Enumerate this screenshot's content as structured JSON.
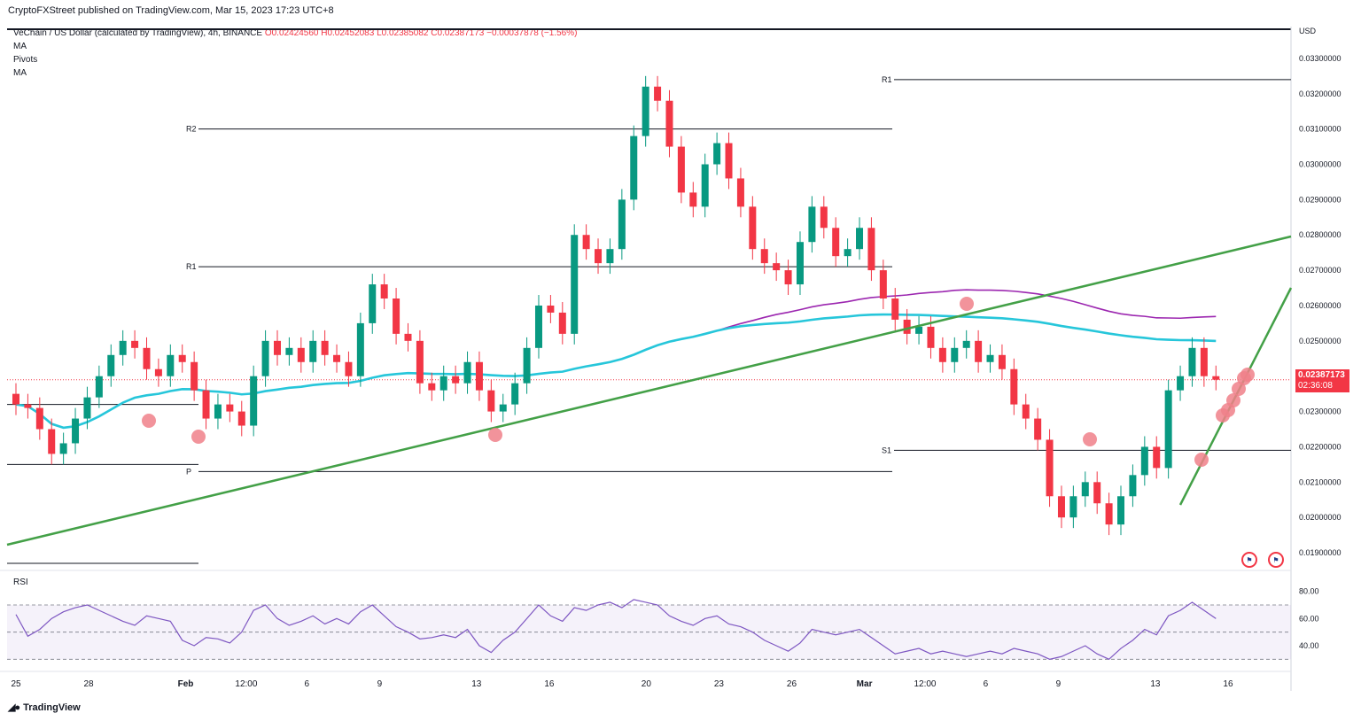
{
  "header": {
    "publisher": "CryptoFXStreet published on TradingView.com, Mar 15, 2023 17:23 UTC+8",
    "symbol": "VeChain / US Dollar (calculated by TradingView), 4h, BINANCE",
    "open": "O0.02424560",
    "high": "H0.02452083",
    "low": "L0.02385082",
    "close": "C0.02387173",
    "change": "−0.00037878 (−1.56%)",
    "indicators": [
      "MA",
      "Pivots",
      "MA"
    ]
  },
  "price_tag": {
    "price": "0.02387173",
    "countdown": "02:36:08"
  },
  "footer": {
    "brand": "TradingView",
    "logo": "tradingview-logo"
  },
  "colors": {
    "up": "#089981",
    "down": "#f23645",
    "ma_long": "#26c6da",
    "ma_purple": "#9c27b0",
    "trendline": "#43a047",
    "pivot": "#131722",
    "marker": "#f0808a",
    "rsi": "#7e57c2"
  },
  "chart_data": {
    "type": "candlestick",
    "currency_label": "USD",
    "y_ticks": [
      "0.03300000",
      "0.03200000",
      "0.03100000",
      "0.03000000",
      "0.02900000",
      "0.02800000",
      "0.02700000",
      "0.02600000",
      "0.02500000",
      "0.02400000",
      "0.02300000",
      "0.02200000",
      "0.02100000",
      "0.02000000",
      "0.01900000"
    ],
    "y_tick_values": [
      0.033,
      0.032,
      0.031,
      0.03,
      0.029,
      0.028,
      0.027,
      0.026,
      0.025,
      0.024,
      0.023,
      0.022,
      0.021,
      0.02,
      0.019
    ],
    "ylim": [
      0.0186,
      0.0338
    ],
    "x_ticks": [
      "25",
      "28",
      "Feb",
      "12:00",
      "6",
      "9",
      "13",
      "16",
      "20",
      "23",
      "26",
      "Mar",
      "12:00",
      "6",
      "9",
      "13",
      "16"
    ],
    "x_tick_days": [
      0,
      3,
      7,
      9.5,
      12,
      15,
      19,
      22,
      26,
      29,
      32,
      35,
      37.5,
      40,
      43,
      47,
      50
    ],
    "xlim": [
      0,
      51.5
    ],
    "candles_close": [
      0.0232,
      0.0231,
      0.0225,
      0.0218,
      0.0221,
      0.0228,
      0.0234,
      0.024,
      0.0246,
      0.025,
      0.0248,
      0.0242,
      0.024,
      0.0246,
      0.0244,
      0.0236,
      0.0228,
      0.0232,
      0.023,
      0.0226,
      0.024,
      0.025,
      0.0246,
      0.0248,
      0.0244,
      0.025,
      0.0246,
      0.0244,
      0.024,
      0.0255,
      0.0266,
      0.0262,
      0.0252,
      0.025,
      0.0238,
      0.0236,
      0.024,
      0.0238,
      0.0244,
      0.0236,
      0.023,
      0.0232,
      0.0238,
      0.0248,
      0.026,
      0.0258,
      0.0252,
      0.028,
      0.0276,
      0.0272,
      0.0276,
      0.029,
      0.0308,
      0.0322,
      0.0318,
      0.0305,
      0.0292,
      0.0288,
      0.03,
      0.0306,
      0.0296,
      0.0288,
      0.0276,
      0.0272,
      0.027,
      0.0266,
      0.0278,
      0.0288,
      0.0282,
      0.0274,
      0.0276,
      0.0282,
      0.027,
      0.0262,
      0.0256,
      0.0252,
      0.0254,
      0.0248,
      0.0244,
      0.0248,
      0.025,
      0.0244,
      0.0246,
      0.0242,
      0.0232,
      0.0228,
      0.0222,
      0.0206,
      0.02,
      0.0206,
      0.021,
      0.0204,
      0.0198,
      0.0206,
      0.0212,
      0.022,
      0.0214,
      0.0236,
      0.024,
      0.0248,
      0.024,
      0.0239
    ],
    "pivot_levels": [
      {
        "label": "R2",
        "value": 0.031
      },
      {
        "label": "R1",
        "value": 0.0271
      },
      {
        "label": "P",
        "value": 0.0213
      },
      {
        "label": "R1",
        "value": 0.0324
      },
      {
        "label": "S1",
        "value": 0.0219
      }
    ],
    "rsi": {
      "label": "RSI",
      "y_ticks": [
        "80.00",
        "60.00",
        "40.00"
      ],
      "y_tick_values": [
        80,
        60,
        40
      ],
      "ylim": [
        25,
        85
      ],
      "band": [
        30,
        70
      ],
      "values": [
        63,
        47,
        52,
        60,
        65,
        68,
        70,
        66,
        62,
        58,
        55,
        62,
        60,
        58,
        44,
        40,
        46,
        45,
        42,
        50,
        66,
        70,
        60,
        55,
        58,
        62,
        56,
        60,
        56,
        65,
        70,
        62,
        54,
        50,
        45,
        46,
        48,
        46,
        52,
        40,
        35,
        44,
        50,
        60,
        70,
        62,
        58,
        68,
        66,
        70,
        72,
        68,
        74,
        72,
        70,
        62,
        58,
        55,
        60,
        62,
        56,
        54,
        50,
        44,
        40,
        36,
        42,
        52,
        50,
        48,
        50,
        52,
        46,
        40,
        34,
        36,
        38,
        34,
        36,
        34,
        32,
        34,
        36,
        34,
        38,
        36,
        34,
        30,
        32,
        36,
        40,
        34,
        30,
        38,
        44,
        52,
        48,
        62,
        66,
        72,
        66,
        60
      ]
    }
  }
}
